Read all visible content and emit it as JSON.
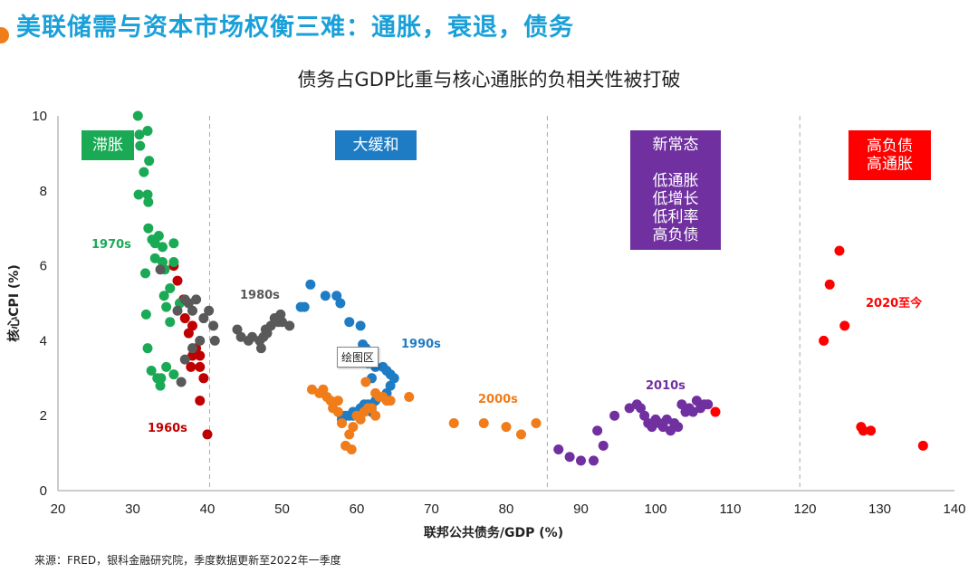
{
  "page": {
    "title": "美联储需与资本市场权衡三难：通胀，衰退，债务",
    "chart_title": "债务占GDP比重与核心通胀的负相关性被打破",
    "source": "来源：FRED，银科金融研究院，季度数据更新至2022年一季度",
    "tooltip": "绘图区"
  },
  "chart_data": {
    "type": "scatter",
    "title": "债务占GDP比重与核心通胀的负相关性被打破",
    "xlabel": "联邦公共债务/GDP (%)",
    "ylabel": "核心CPI (%)",
    "xlim": [
      20,
      140
    ],
    "ylim": [
      0,
      10
    ],
    "xticks": [
      20,
      30,
      40,
      50,
      60,
      70,
      80,
      90,
      100,
      110,
      120,
      130,
      140
    ],
    "yticks": [
      0,
      2,
      4,
      6,
      8,
      10
    ],
    "grid": false,
    "dividers": [
      40.3,
      85.5,
      119.3
    ],
    "regions": [
      {
        "lines": [
          "滞胀"
        ],
        "color": "#1aaa55"
      },
      {
        "lines": [
          "大缓和"
        ],
        "color": "#1e7cc4"
      },
      {
        "lines": [
          "新常态",
          "",
          "低通胀",
          "低增长",
          "低利率",
          "高负债"
        ],
        "color": "#7030a0"
      },
      {
        "lines": [
          "高负债",
          "高通胀"
        ],
        "color": "#ff0000"
      }
    ],
    "series": [
      {
        "name": "1960s",
        "color": "#c00000",
        "points": [
          [
            35.5,
            6.0
          ],
          [
            36,
            5.6
          ],
          [
            36.8,
            5.1
          ],
          [
            37,
            4.6
          ],
          [
            38,
            4.4
          ],
          [
            37.5,
            4.2
          ],
          [
            38.5,
            3.8
          ],
          [
            38,
            3.6
          ],
          [
            39,
            3.6
          ],
          [
            37.8,
            3.3
          ],
          [
            39,
            3.3
          ],
          [
            39.5,
            3.0
          ],
          [
            39,
            2.4
          ],
          [
            40,
            1.5
          ]
        ]
      },
      {
        "name": "1970s",
        "color": "#1aaa55",
        "points": [
          [
            30.7,
            10.0
          ],
          [
            30.9,
            9.5
          ],
          [
            31,
            9.2
          ],
          [
            32,
            9.6
          ],
          [
            32.2,
            8.8
          ],
          [
            31.5,
            8.5
          ],
          [
            30.8,
            7.9
          ],
          [
            32,
            7.9
          ],
          [
            32.1,
            7.7
          ],
          [
            32.1,
            7.0
          ],
          [
            32.6,
            6.7
          ],
          [
            33,
            6.6
          ],
          [
            33.5,
            6.8
          ],
          [
            34,
            6.5
          ],
          [
            35.5,
            6.6
          ],
          [
            33,
            6.2
          ],
          [
            34,
            6.1
          ],
          [
            35.5,
            6.1
          ],
          [
            34.3,
            5.9
          ],
          [
            31.7,
            5.8
          ],
          [
            35,
            5.4
          ],
          [
            34.2,
            5.2
          ],
          [
            36.3,
            5.0
          ],
          [
            34.5,
            4.9
          ],
          [
            31.8,
            4.7
          ],
          [
            35,
            4.5
          ],
          [
            32,
            3.8
          ],
          [
            34.5,
            3.3
          ],
          [
            35.5,
            3.1
          ],
          [
            32.5,
            3.2
          ],
          [
            33.3,
            3.0
          ],
          [
            33.8,
            3.0
          ],
          [
            33.7,
            2.8
          ]
        ]
      },
      {
        "name": "1980s",
        "color": "#595959",
        "points": [
          [
            33.7,
            5.9
          ],
          [
            36,
            4.8
          ],
          [
            37,
            5.1
          ],
          [
            37.5,
            5.0
          ],
          [
            38.5,
            5.1
          ],
          [
            38,
            4.8
          ],
          [
            39.5,
            4.6
          ],
          [
            40.2,
            4.8
          ],
          [
            40.8,
            4.4
          ],
          [
            41,
            4.0
          ],
          [
            39,
            4.0
          ],
          [
            38,
            3.8
          ],
          [
            37,
            3.5
          ],
          [
            36.5,
            2.9
          ],
          [
            44,
            4.3
          ],
          [
            44.5,
            4.1
          ],
          [
            45.5,
            4.0
          ],
          [
            46,
            4.1
          ],
          [
            47,
            4.0
          ],
          [
            47.2,
            3.8
          ],
          [
            47.5,
            4.1
          ],
          [
            47.8,
            4.3
          ],
          [
            48,
            4.2
          ],
          [
            48.5,
            4.4
          ],
          [
            49,
            4.6
          ],
          [
            49.5,
            4.5
          ],
          [
            49.8,
            4.7
          ],
          [
            50,
            4.5
          ],
          [
            51,
            4.4
          ]
        ]
      },
      {
        "name": "1990s",
        "color": "#1e7cc4",
        "points": [
          [
            52.5,
            4.9
          ],
          [
            53,
            4.9
          ],
          [
            53.8,
            5.5
          ],
          [
            55.8,
            5.2
          ],
          [
            57.3,
            5.2
          ],
          [
            57.8,
            5.0
          ],
          [
            59,
            4.5
          ],
          [
            60.5,
            4.4
          ],
          [
            60.8,
            3.9
          ],
          [
            61.2,
            3.8
          ],
          [
            61.8,
            3.6
          ],
          [
            61.5,
            3.4
          ],
          [
            62.5,
            3.3
          ],
          [
            62,
            3.0
          ],
          [
            63.5,
            3.3
          ],
          [
            64,
            3.2
          ],
          [
            64.5,
            3.1
          ],
          [
            65,
            3.0
          ],
          [
            64.5,
            2.8
          ],
          [
            64,
            2.6
          ],
          [
            63,
            2.5
          ],
          [
            62.5,
            2.4
          ],
          [
            62,
            2.3
          ],
          [
            61.5,
            2.3
          ],
          [
            61,
            2.2
          ],
          [
            60.5,
            2.2
          ],
          [
            60,
            2.1
          ],
          [
            59.5,
            2.1
          ],
          [
            59,
            2.0
          ],
          [
            58.5,
            2.0
          ],
          [
            58,
            2.0
          ],
          [
            58,
            1.9
          ],
          [
            59.5,
            2.0
          ],
          [
            61,
            2.3
          ],
          [
            62,
            2.1
          ]
        ]
      },
      {
        "name": "2000s",
        "color": "#f07c1a",
        "points": [
          [
            54,
            2.7
          ],
          [
            55,
            2.6
          ],
          [
            55.5,
            2.7
          ],
          [
            56,
            2.5
          ],
          [
            56.5,
            2.4
          ],
          [
            57.5,
            2.4
          ],
          [
            56.8,
            2.2
          ],
          [
            57.5,
            2.1
          ],
          [
            58,
            1.8
          ],
          [
            59.5,
            1.7
          ],
          [
            59,
            1.5
          ],
          [
            58.5,
            1.2
          ],
          [
            59.3,
            1.1
          ],
          [
            60,
            2.0
          ],
          [
            60.5,
            1.9
          ],
          [
            61,
            2.1
          ],
          [
            61.5,
            2.2
          ],
          [
            62,
            2.2
          ],
          [
            61.2,
            2.9
          ],
          [
            62.5,
            2.6
          ],
          [
            63,
            2.5
          ],
          [
            63.5,
            2.5
          ],
          [
            64,
            2.4
          ],
          [
            64.5,
            2.4
          ],
          [
            62.5,
            2.0
          ],
          [
            67,
            2.5
          ],
          [
            73,
            1.8
          ],
          [
            77,
            1.8
          ],
          [
            80,
            1.7
          ],
          [
            82,
            1.5
          ],
          [
            84,
            1.8
          ]
        ]
      },
      {
        "name": "2010s",
        "color": "#7030a0",
        "points": [
          [
            87,
            1.1
          ],
          [
            88.5,
            0.9
          ],
          [
            90,
            0.8
          ],
          [
            91.7,
            0.8
          ],
          [
            92.2,
            1.6
          ],
          [
            93,
            1.2
          ],
          [
            94.5,
            2.0
          ],
          [
            96.5,
            2.2
          ],
          [
            97.5,
            2.3
          ],
          [
            98,
            2.2
          ],
          [
            98.5,
            2.0
          ],
          [
            99,
            1.8
          ],
          [
            99.5,
            1.7
          ],
          [
            100,
            1.9
          ],
          [
            100.5,
            1.8
          ],
          [
            101,
            1.7
          ],
          [
            101.5,
            1.9
          ],
          [
            102,
            1.6
          ],
          [
            102.5,
            1.8
          ],
          [
            103,
            1.7
          ],
          [
            103.5,
            2.3
          ],
          [
            104,
            2.1
          ],
          [
            104.5,
            2.2
          ],
          [
            105,
            2.1
          ],
          [
            105.5,
            2.4
          ],
          [
            106,
            2.2
          ],
          [
            106.5,
            2.3
          ],
          [
            107,
            2.3
          ]
        ]
      },
      {
        "name": "2020至今",
        "color": "#ff0000",
        "points": [
          [
            108,
            2.1
          ],
          [
            122.5,
            4.0
          ],
          [
            123.3,
            5.5
          ],
          [
            124.6,
            6.4
          ],
          [
            125.3,
            4.4
          ],
          [
            127.5,
            1.7
          ],
          [
            127.8,
            1.6
          ],
          [
            128.8,
            1.6
          ],
          [
            135.8,
            1.2
          ]
        ]
      }
    ]
  }
}
